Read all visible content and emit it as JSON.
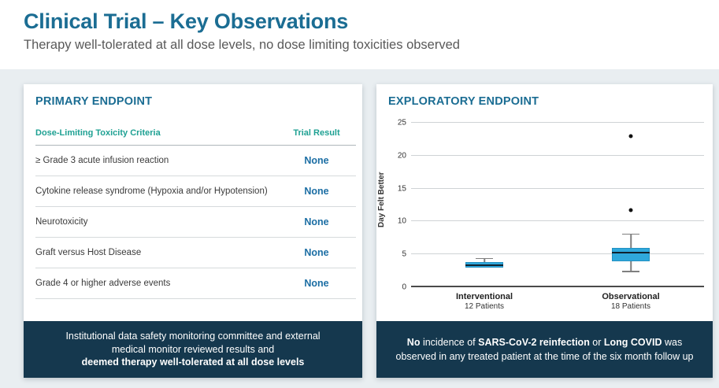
{
  "header": {
    "title": "Clinical Trial – Key Observations",
    "subtitle": "Therapy well-tolerated at all dose levels, no dose limiting toxicities observed"
  },
  "colors": {
    "title_blue": "#1b6d93",
    "teal_header": "#1fa193",
    "none_blue": "#1c6ea4",
    "navy_footer": "#15384e",
    "box_fill": "#2fa8dc",
    "background_band": "#e9eef1"
  },
  "primary": {
    "title": "PRIMARY ENDPOINT",
    "table": {
      "columns": [
        "Dose-Limiting Toxicity Criteria",
        "Trial Result"
      ],
      "rows": [
        {
          "criteria": "≥ Grade 3 acute infusion reaction",
          "result": "None"
        },
        {
          "criteria": "Cytokine release syndrome (Hypoxia and/or Hypotension)",
          "result": "None"
        },
        {
          "criteria": "Neurotoxicity",
          "result": "None"
        },
        {
          "criteria": "Graft versus Host Disease",
          "result": "None"
        },
        {
          "criteria": "Grade 4 or higher adverse events",
          "result": "None"
        }
      ]
    },
    "footer": {
      "lines": [
        {
          "text": "Institutional data safety monitoring committee and external",
          "bold": false
        },
        {
          "text": "medical monitor reviewed results and",
          "bold": false
        },
        {
          "text": "deemed therapy well-tolerated at all dose levels",
          "bold": true
        }
      ]
    }
  },
  "exploratory": {
    "title": "EXPLORATORY ENDPOINT",
    "footer": {
      "segments": [
        {
          "text": "No",
          "bold": true
        },
        {
          "text": " incidence of ",
          "bold": false
        },
        {
          "text": "SARS-CoV-2 reinfection",
          "bold": true
        },
        {
          "text": " or ",
          "bold": false
        },
        {
          "text": "Long COVID",
          "bold": true
        },
        {
          "text": " was observed in any treated patient at the time of the six month follow up",
          "bold": false
        }
      ]
    }
  },
  "chart_data": {
    "type": "boxplot",
    "title": "",
    "xlabel": "",
    "ylabel": "Day Felt Better",
    "yticks": [
      0,
      5,
      10,
      15,
      20,
      25
    ],
    "ylim": [
      0,
      26.5
    ],
    "grid": true,
    "groups": [
      {
        "label": "Interventional",
        "sublabel": "12 Patients",
        "min": 3.05,
        "q1": 3.05,
        "median": 3.2,
        "q3": 3.8,
        "max": 4.3,
        "outliers": []
      },
      {
        "label": "Observational",
        "sublabel": "18 Patients",
        "min": 2.3,
        "q1": 4.0,
        "median": 5.1,
        "q3": 6.0,
        "max": 8.0,
        "outliers": [
          11.7,
          23.0
        ]
      }
    ]
  }
}
